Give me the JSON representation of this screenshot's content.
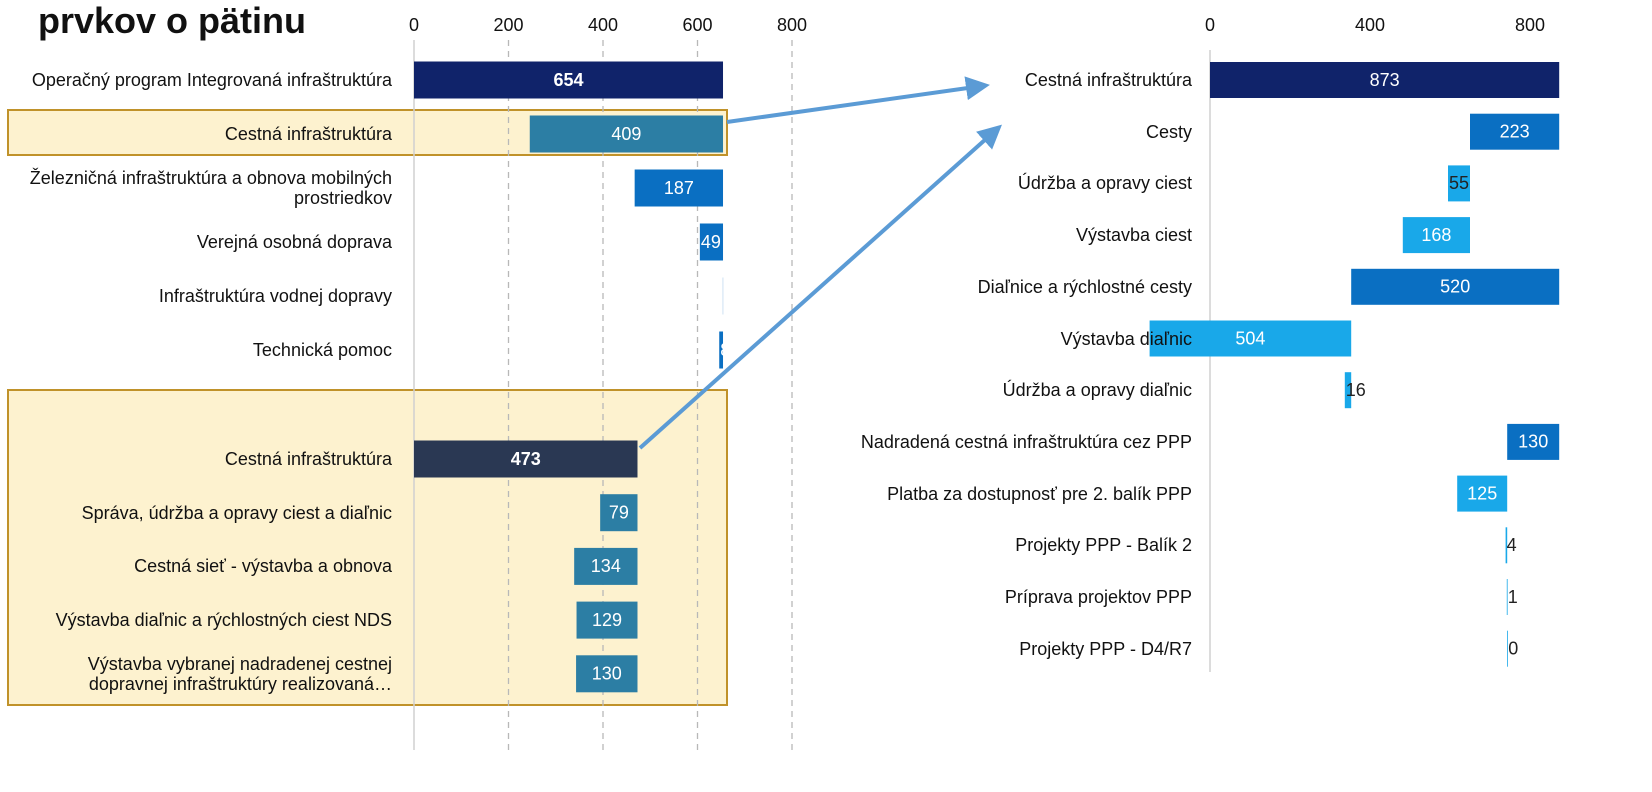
{
  "title": "prvkov o pätinu",
  "chart_data": [
    {
      "type": "waterfall",
      "categories": [
        "Operačný program Integrovaná infraštruktúra",
        "Cestná infraštruktúra",
        "Železničná infraštruktúra a obnova mobilných prostriedkov",
        "Verejná osobná doprava",
        "Infraštruktúra vodnej dopravy",
        "Technická pomoc",
        "Cestná infraštruktúra",
        "Správa, údržba a opravy ciest a diaľnic",
        "Cestná sieť - výstavba a obnova",
        "Výstavba diaľnic a rýchlostných ciest NDS",
        "Výstavba vybranej nadradenej cestnej dopravnej infraštruktúry realizovaná…"
      ],
      "values": [
        654,
        409,
        187,
        49,
        1,
        8,
        473,
        79,
        134,
        129,
        130
      ],
      "levels": [
        0,
        1,
        1,
        1,
        1,
        1,
        0,
        1,
        1,
        1,
        1
      ],
      "colors": [
        "#10236a",
        "#2c7ea4",
        "#0a6fc2",
        "#0a6fc2",
        "#0a6fc2",
        "#0a6fc2",
        "#2a3853",
        "#2c7ea4",
        "#2c7ea4",
        "#2c7ea4",
        "#2c7ea4"
      ],
      "xlim": [
        0,
        800
      ],
      "xticks": [
        0,
        200,
        400,
        600,
        800
      ],
      "grid": true,
      "bold_totals": true,
      "small_label_color": "#ffffff"
    },
    {
      "type": "waterfall",
      "categories": [
        "Cestná infraštruktúra",
        "Cesty",
        "Údržba a opravy ciest",
        "Výstavba ciest",
        "Diaľnice a rýchlostné cesty",
        "Výstavba diaľnic",
        "Údržba a opravy diaľnic",
        "Nadradená cestná infraštruktúra cez PPP",
        "Platba za dostupnosť pre 2. balík PPP",
        "Projekty PPP - Balík 2",
        "Príprava projektov PPP",
        "Projekty PPP - D4/R7"
      ],
      "values": [
        873,
        223,
        55,
        168,
        520,
        504,
        16,
        130,
        125,
        4,
        1,
        0
      ],
      "levels": [
        0,
        1,
        2,
        2,
        1,
        2,
        2,
        1,
        2,
        2,
        2,
        2
      ],
      "colors": [
        "#10236a",
        "#0a6fc2",
        "#19a8e9",
        "#19a8e9",
        "#0a6fc2",
        "#19a8e9",
        "#19a8e9",
        "#0a6fc2",
        "#19a8e9",
        "#19a8e9",
        "#19a8e9",
        "#19a8e9"
      ],
      "xlim": [
        0,
        800
      ],
      "xticks": [
        0,
        400,
        800
      ],
      "grid": false,
      "bold_totals": false,
      "small_label_color": "#222222"
    }
  ]
}
